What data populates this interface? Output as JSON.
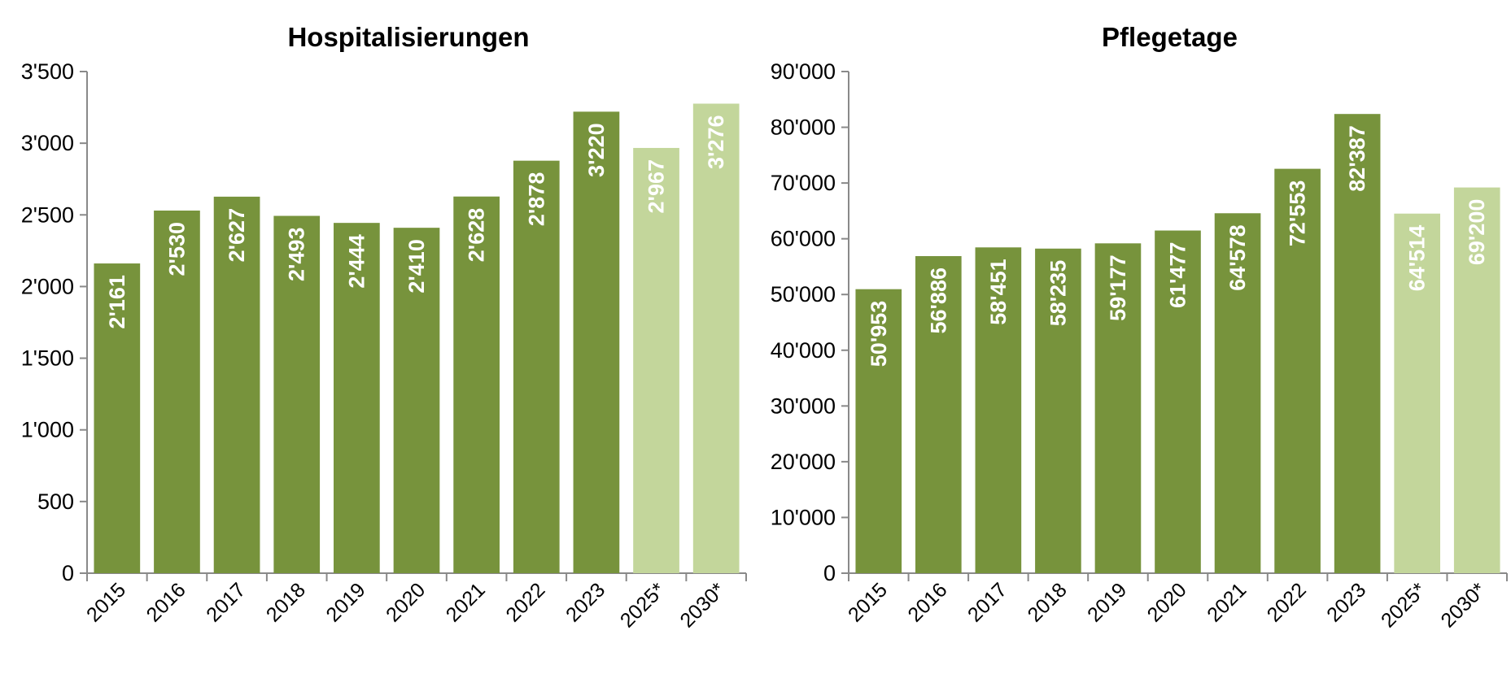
{
  "colors": {
    "actual": "#77933C",
    "forecast": "#C3D69B",
    "axis": "#898989"
  },
  "chart_data": [
    {
      "type": "bar",
      "title": "Hospitalisierungen",
      "xlabel": "",
      "ylabel": "",
      "categories": [
        "2015",
        "2016",
        "2017",
        "2018",
        "2019",
        "2020",
        "2021",
        "2022",
        "2023",
        "2025*",
        "2030*"
      ],
      "values": [
        2161,
        2530,
        2627,
        2493,
        2444,
        2410,
        2628,
        2878,
        3220,
        2967,
        3276
      ],
      "data_labels": [
        "2'161",
        "2'530",
        "2'627",
        "2'493",
        "2'444",
        "2'410",
        "2'628",
        "2'878",
        "3'220",
        "2'967",
        "3'276"
      ],
      "forecast": [
        false,
        false,
        false,
        false,
        false,
        false,
        false,
        false,
        false,
        true,
        true
      ],
      "ylim": [
        0,
        3500
      ],
      "yticks": [
        0,
        500,
        1000,
        1500,
        2000,
        2500,
        3000,
        3500
      ],
      "ytick_labels": [
        "0",
        "500",
        "1'000",
        "1'500",
        "2'000",
        "2'500",
        "3'000",
        "3'500"
      ],
      "grid": false,
      "legend": "none"
    },
    {
      "type": "bar",
      "title": "Pflegetage",
      "xlabel": "",
      "ylabel": "",
      "categories": [
        "2015",
        "2016",
        "2017",
        "2018",
        "2019",
        "2020",
        "2021",
        "2022",
        "2023",
        "2025*",
        "2030*"
      ],
      "values": [
        50953,
        56886,
        58451,
        58235,
        59177,
        61477,
        64578,
        72553,
        82387,
        64514,
        69200
      ],
      "data_labels": [
        "50'953",
        "56'886",
        "58'451",
        "58'235",
        "59'177",
        "61'477",
        "64'578",
        "72'553",
        "82'387",
        "64'514",
        "69'200"
      ],
      "forecast": [
        false,
        false,
        false,
        false,
        false,
        false,
        false,
        false,
        false,
        true,
        true
      ],
      "ylim": [
        0,
        90000
      ],
      "yticks": [
        0,
        10000,
        20000,
        30000,
        40000,
        50000,
        60000,
        70000,
        80000,
        90000
      ],
      "ytick_labels": [
        "0",
        "10'000",
        "20'000",
        "30'000",
        "40'000",
        "50'000",
        "60'000",
        "70'000",
        "80'000",
        "90'000"
      ],
      "grid": false,
      "legend": "none"
    }
  ]
}
